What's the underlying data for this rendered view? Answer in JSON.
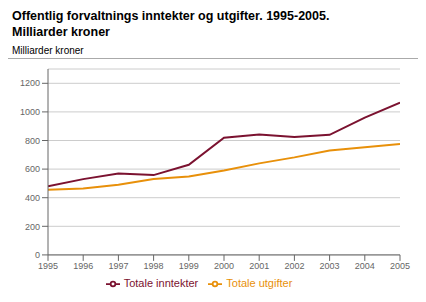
{
  "chart_data": {
    "type": "line",
    "title": "Offentlig forvaltnings inntekter og utgifter. 1995-2005.",
    "subtitle": "Milliarder kroner",
    "y_label": "Milliarder kroner",
    "x": [
      1995,
      1996,
      1997,
      1998,
      1999,
      2000,
      2001,
      2002,
      2003,
      2004,
      2005
    ],
    "series": [
      {
        "name": "Totale inntekter",
        "color": "#7B1230",
        "values": [
          480,
          530,
          570,
          558,
          630,
          820,
          842,
          824,
          840,
          960,
          1065
        ]
      },
      {
        "name": "Totale utgifter",
        "color": "#E8900A",
        "values": [
          455,
          465,
          490,
          530,
          548,
          590,
          640,
          682,
          730,
          752,
          775
        ]
      }
    ],
    "xlim": [
      1995,
      2005
    ],
    "xticks": [
      1995,
      1996,
      1997,
      1998,
      1999,
      2000,
      2001,
      2002,
      2003,
      2004,
      2005
    ],
    "ylim": [
      0,
      1300
    ],
    "yticks": [
      0,
      200,
      400,
      600,
      800,
      1000,
      1200
    ],
    "grid": true,
    "legend": "bottom"
  }
}
